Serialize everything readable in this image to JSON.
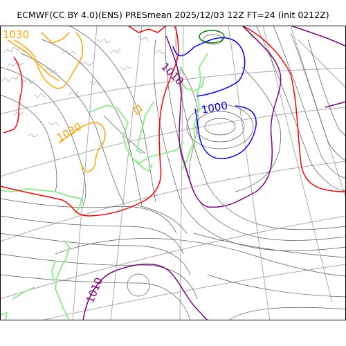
{
  "title": "ECMWF(CC BY 4.0)(ENS) PRESmean 2025/12/03 12Z FT=24 (init 0212Z)",
  "colors": {
    "coast": "#90ee90",
    "grid": "#aaaaaa",
    "isobar": "#555555",
    "c1000": "#0000ff",
    "c1010": "#800080",
    "c1020": "#ff0000",
    "c1030": "#ffa500",
    "c1040": "#008000"
  },
  "contour_labels": [
    {
      "text": "1030",
      "color_key": "c1030"
    },
    {
      "text": "1010",
      "color_key": "c1010"
    },
    {
      "text": "1030",
      "color_key": "c1030"
    },
    {
      "text": "1000",
      "color_key": "c1000"
    },
    {
      "text": "1010",
      "color_key": "c1010"
    }
  ]
}
